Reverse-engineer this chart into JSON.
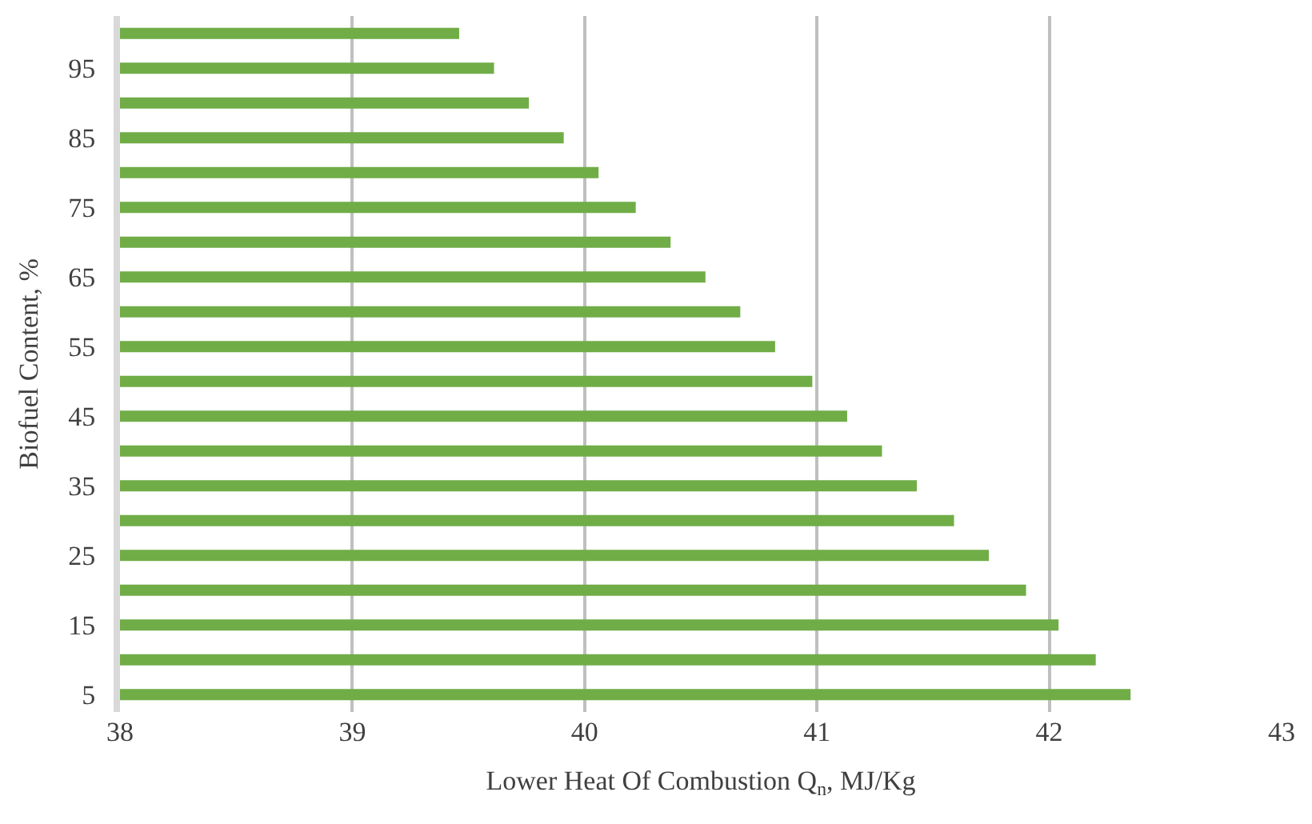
{
  "chart_data": {
    "type": "bar",
    "orientation": "horizontal",
    "categories": [
      null,
      "95",
      null,
      "85",
      null,
      "75",
      null,
      "65",
      null,
      "55",
      null,
      "45",
      null,
      "35",
      null,
      "25",
      null,
      "15",
      null,
      "5"
    ],
    "values": [
      39.46,
      39.61,
      39.76,
      39.91,
      40.06,
      40.22,
      40.37,
      40.52,
      40.67,
      40.82,
      40.98,
      41.13,
      41.28,
      41.43,
      41.59,
      41.74,
      41.9,
      42.04,
      42.2,
      42.35
    ],
    "color": "#70ad47",
    "xlim": [
      38,
      43
    ],
    "xticks": [
      38,
      39,
      40,
      41,
      42,
      43
    ],
    "xlabel": "Lower Heat Of Combustion Q$_{n}$, MJ/Kg",
    "ylabel": "Biofuel Content, %",
    "grid": "x",
    "legend": false
  }
}
